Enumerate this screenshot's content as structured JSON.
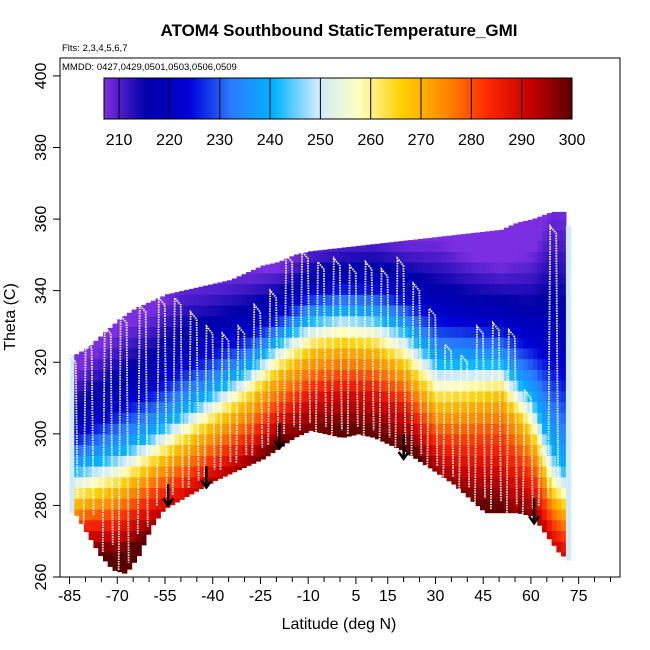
{
  "chart_data": {
    "type": "heatmap",
    "title": "ATOM4 Southbound StaticTemperature_GMI",
    "subtitle_flights": "Flts: 2,3,4,5,6,7",
    "subtitle_dates": "MMDD: 0427,0429,0501,0503,0506,0509",
    "xlabel": "Latitude (deg N)",
    "ylabel": "Theta (C)",
    "xlim": [
      -88,
      88
    ],
    "ylim": [
      260,
      405
    ],
    "x_ticks": [
      -85,
      -70,
      -55,
      -40,
      -25,
      -10,
      5,
      15,
      30,
      45,
      60,
      75
    ],
    "y_ticks": [
      260,
      280,
      300,
      320,
      340,
      360,
      380,
      400
    ],
    "colorbar": {
      "min": 207,
      "max": 300,
      "ticks": [
        210,
        220,
        230,
        240,
        250,
        260,
        270,
        280,
        290,
        300
      ],
      "colors": [
        "#7b2fe0",
        "#0000a8",
        "#0000d8",
        "#2a7cff",
        "#00b4ff",
        "#cceaff",
        "#ffffc0",
        "#ffd000",
        "#ff8c00",
        "#ff2a00",
        "#c80000",
        "#5a0000"
      ]
    },
    "field_upper_boundary": [
      [
        -84,
        322
      ],
      [
        -80,
        324
      ],
      [
        -75,
        328
      ],
      [
        -70,
        332
      ],
      [
        -65,
        335
      ],
      [
        -60,
        337
      ],
      [
        -55,
        339
      ],
      [
        -50,
        340
      ],
      [
        -45,
        341
      ],
      [
        -40,
        342
      ],
      [
        -35,
        343
      ],
      [
        -30,
        345
      ],
      [
        -25,
        347
      ],
      [
        -20,
        348
      ],
      [
        -15,
        350
      ],
      [
        -10,
        351
      ],
      [
        0,
        352
      ],
      [
        10,
        353
      ],
      [
        20,
        354
      ],
      [
        30,
        355
      ],
      [
        40,
        356
      ],
      [
        50,
        357
      ],
      [
        55,
        359
      ],
      [
        60,
        360
      ],
      [
        66,
        362
      ],
      [
        70,
        362
      ],
      [
        71,
        358
      ],
      [
        72,
        292
      ]
    ],
    "field_lower_boundary": [
      [
        -84,
        278
      ],
      [
        -80,
        272
      ],
      [
        -76,
        266
      ],
      [
        -72,
        262
      ],
      [
        -68,
        261
      ],
      [
        -64,
        266
      ],
      [
        -60,
        274
      ],
      [
        -56,
        279
      ],
      [
        -52,
        281
      ],
      [
        -48,
        283
      ],
      [
        -44,
        285
      ],
      [
        -40,
        287
      ],
      [
        -35,
        289
      ],
      [
        -30,
        291
      ],
      [
        -25,
        293
      ],
      [
        -20,
        296
      ],
      [
        -15,
        299
      ],
      [
        -10,
        301
      ],
      [
        -5,
        300
      ],
      [
        0,
        299
      ],
      [
        5,
        300
      ],
      [
        10,
        299
      ],
      [
        15,
        297
      ],
      [
        20,
        295
      ],
      [
        25,
        292
      ],
      [
        30,
        289
      ],
      [
        35,
        286
      ],
      [
        40,
        282
      ],
      [
        45,
        278
      ],
      [
        50,
        278
      ],
      [
        55,
        278
      ],
      [
        60,
        277
      ],
      [
        64,
        272
      ],
      [
        68,
        267
      ],
      [
        72,
        264
      ]
    ],
    "isotherms": [
      {
        "temp": 220,
        "points": [
          [
            -84,
            302
          ],
          [
            -70,
            310
          ],
          [
            -60,
            315
          ],
          [
            -50,
            322
          ],
          [
            -40,
            326
          ],
          [
            -30,
            330
          ],
          [
            -20,
            335
          ],
          [
            -10,
            341
          ],
          [
            0,
            343
          ],
          [
            10,
            343
          ],
          [
            20,
            340
          ],
          [
            30,
            335
          ],
          [
            40,
            333
          ],
          [
            50,
            332
          ],
          [
            60,
            328
          ],
          [
            66,
            326
          ],
          [
            70,
            322
          ]
        ]
      },
      {
        "temp": 240,
        "points": [
          [
            -84,
            290
          ],
          [
            -70,
            295
          ],
          [
            -60,
            300
          ],
          [
            -50,
            306
          ],
          [
            -40,
            312
          ],
          [
            -30,
            318
          ],
          [
            -20,
            326
          ],
          [
            -10,
            332
          ],
          [
            0,
            334
          ],
          [
            10,
            333
          ],
          [
            20,
            329
          ],
          [
            30,
            320
          ],
          [
            40,
            320
          ],
          [
            50,
            320
          ],
          [
            60,
            310
          ],
          [
            66,
            296
          ],
          [
            70,
            290
          ]
        ]
      },
      {
        "temp": 260,
        "points": [
          [
            -84,
            284
          ],
          [
            -70,
            288
          ],
          [
            -60,
            294
          ],
          [
            -50,
            300
          ],
          [
            -40,
            306
          ],
          [
            -30,
            312
          ],
          [
            -20,
            320
          ],
          [
            -10,
            326
          ],
          [
            0,
            328
          ],
          [
            10,
            327
          ],
          [
            20,
            322
          ],
          [
            30,
            312
          ],
          [
            40,
            313
          ],
          [
            50,
            314
          ],
          [
            60,
            302
          ],
          [
            66,
            286
          ],
          [
            70,
            282
          ]
        ]
      },
      {
        "temp": 270,
        "points": [
          [
            -84,
            280
          ],
          [
            -70,
            284
          ],
          [
            -60,
            290
          ],
          [
            -50,
            296
          ],
          [
            -40,
            302
          ],
          [
            -30,
            308
          ],
          [
            -20,
            316
          ],
          [
            -10,
            322
          ],
          [
            0,
            324
          ],
          [
            10,
            323
          ],
          [
            20,
            318
          ],
          [
            30,
            307
          ],
          [
            40,
            308
          ],
          [
            50,
            310
          ],
          [
            60,
            298
          ],
          [
            66,
            282
          ],
          [
            70,
            278
          ]
        ]
      },
      {
        "temp": 280,
        "points": [
          [
            -84,
            276
          ],
          [
            -70,
            278
          ],
          [
            -60,
            284
          ],
          [
            -50,
            289
          ],
          [
            -40,
            295
          ],
          [
            -30,
            301
          ],
          [
            -20,
            309
          ],
          [
            -10,
            315
          ],
          [
            0,
            317
          ],
          [
            10,
            316
          ],
          [
            20,
            311
          ],
          [
            30,
            300
          ],
          [
            40,
            300
          ],
          [
            50,
            301
          ],
          [
            60,
            290
          ],
          [
            66,
            276
          ],
          [
            70,
            272
          ]
        ]
      },
      {
        "temp": 290,
        "points": [
          [
            -50,
            283
          ],
          [
            -40,
            289
          ],
          [
            -30,
            295
          ],
          [
            -20,
            303
          ],
          [
            -10,
            309
          ],
          [
            0,
            311
          ],
          [
            10,
            310
          ],
          [
            20,
            305
          ],
          [
            30,
            293
          ],
          [
            40,
            290
          ],
          [
            50,
            290
          ],
          [
            55,
            284
          ]
        ]
      },
      {
        "temp": 295,
        "points": [
          [
            -20,
            300
          ],
          [
            -10,
            304
          ],
          [
            0,
            306
          ],
          [
            10,
            305
          ],
          [
            20,
            300
          ]
        ]
      }
    ],
    "flight_profiles": [
      {
        "lat": -84,
        "theta_top": 322,
        "theta_bottom": 280
      },
      {
        "lat": -79,
        "theta_top": 326,
        "theta_bottom": 275
      },
      {
        "lat": -73,
        "theta_top": 330,
        "theta_bottom": 267
      },
      {
        "lat": -68,
        "theta_top": 333,
        "theta_bottom": 262
      },
      {
        "lat": -62,
        "theta_top": 336,
        "theta_bottom": 272
      },
      {
        "lat": -56,
        "theta_top": 338,
        "theta_bottom": 280
      },
      {
        "lat": -51,
        "theta_top": 338,
        "theta_bottom": 283
      },
      {
        "lat": -46,
        "theta_top": 334,
        "theta_bottom": 285
      },
      {
        "lat": -41,
        "theta_top": 330,
        "theta_bottom": 288
      },
      {
        "lat": -36,
        "theta_top": 328,
        "theta_bottom": 290
      },
      {
        "lat": -31,
        "theta_top": 330,
        "theta_bottom": 292
      },
      {
        "lat": -26,
        "theta_top": 336,
        "theta_bottom": 294
      },
      {
        "lat": -21,
        "theta_top": 340,
        "theta_bottom": 297
      },
      {
        "lat": -16,
        "theta_top": 350,
        "theta_bottom": 300
      },
      {
        "lat": -11,
        "theta_top": 351,
        "theta_bottom": 301
      },
      {
        "lat": -6,
        "theta_top": 348,
        "theta_bottom": 300
      },
      {
        "lat": -1,
        "theta_top": 349,
        "theta_bottom": 299
      },
      {
        "lat": 4,
        "theta_top": 347,
        "theta_bottom": 300
      },
      {
        "lat": 9,
        "theta_top": 348,
        "theta_bottom": 299
      },
      {
        "lat": 14,
        "theta_top": 346,
        "theta_bottom": 297
      },
      {
        "lat": 19,
        "theta_top": 349,
        "theta_bottom": 295
      },
      {
        "lat": 24,
        "theta_top": 342,
        "theta_bottom": 292
      },
      {
        "lat": 29,
        "theta_top": 335,
        "theta_bottom": 289
      },
      {
        "lat": 34,
        "theta_top": 325,
        "theta_bottom": 286
      },
      {
        "lat": 39,
        "theta_top": 322,
        "theta_bottom": 283
      },
      {
        "lat": 44,
        "theta_top": 330,
        "theta_bottom": 280
      },
      {
        "lat": 49,
        "theta_top": 331,
        "theta_bottom": 279
      },
      {
        "lat": 54,
        "theta_top": 329,
        "theta_bottom": 278
      },
      {
        "lat": 59,
        "theta_top": 312,
        "theta_bottom": 277
      },
      {
        "lat": 64,
        "theta_top": 296,
        "theta_bottom": 280
      },
      {
        "lat": 67,
        "theta_top": 358,
        "theta_bottom": 285
      }
    ],
    "arrows": [
      {
        "lat": -54,
        "theta_top": 286,
        "theta_bottom": 280
      },
      {
        "lat": -42,
        "theta_top": 291,
        "theta_bottom": 285
      },
      {
        "lat": -19,
        "theta_top": 303,
        "theta_bottom": 296
      },
      {
        "lat": 20,
        "theta_top": 300,
        "theta_bottom": 293
      },
      {
        "lat": 61,
        "theta_top": 282,
        "theta_bottom": 275
      }
    ]
  }
}
